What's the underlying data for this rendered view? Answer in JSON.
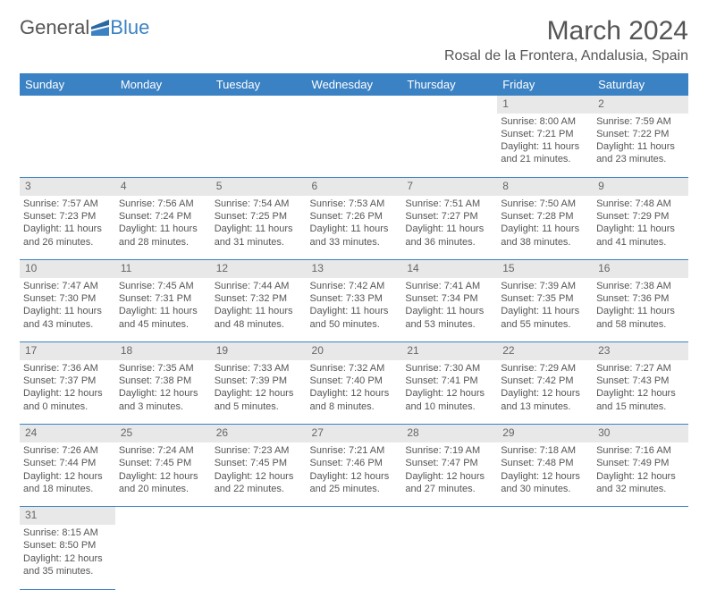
{
  "logo": {
    "textA": "General",
    "textB": "Blue",
    "colorA": "#555555",
    "colorB": "#3b82c4"
  },
  "title": "March 2024",
  "location": "Rosal de la Frontera, Andalusia, Spain",
  "header_color": "#3b82c4",
  "daynum_bg": "#e8e8e8",
  "weekdays": [
    "Sunday",
    "Monday",
    "Tuesday",
    "Wednesday",
    "Thursday",
    "Friday",
    "Saturday"
  ],
  "weeks": [
    {
      "nums": [
        "",
        "",
        "",
        "",
        "",
        "1",
        "2"
      ],
      "info": [
        "",
        "",
        "",
        "",
        "",
        "Sunrise: 8:00 AM\nSunset: 7:21 PM\nDaylight: 11 hours and 21 minutes.",
        "Sunrise: 7:59 AM\nSunset: 7:22 PM\nDaylight: 11 hours and 23 minutes."
      ]
    },
    {
      "nums": [
        "3",
        "4",
        "5",
        "6",
        "7",
        "8",
        "9"
      ],
      "info": [
        "Sunrise: 7:57 AM\nSunset: 7:23 PM\nDaylight: 11 hours and 26 minutes.",
        "Sunrise: 7:56 AM\nSunset: 7:24 PM\nDaylight: 11 hours and 28 minutes.",
        "Sunrise: 7:54 AM\nSunset: 7:25 PM\nDaylight: 11 hours and 31 minutes.",
        "Sunrise: 7:53 AM\nSunset: 7:26 PM\nDaylight: 11 hours and 33 minutes.",
        "Sunrise: 7:51 AM\nSunset: 7:27 PM\nDaylight: 11 hours and 36 minutes.",
        "Sunrise: 7:50 AM\nSunset: 7:28 PM\nDaylight: 11 hours and 38 minutes.",
        "Sunrise: 7:48 AM\nSunset: 7:29 PM\nDaylight: 11 hours and 41 minutes."
      ]
    },
    {
      "nums": [
        "10",
        "11",
        "12",
        "13",
        "14",
        "15",
        "16"
      ],
      "info": [
        "Sunrise: 7:47 AM\nSunset: 7:30 PM\nDaylight: 11 hours and 43 minutes.",
        "Sunrise: 7:45 AM\nSunset: 7:31 PM\nDaylight: 11 hours and 45 minutes.",
        "Sunrise: 7:44 AM\nSunset: 7:32 PM\nDaylight: 11 hours and 48 minutes.",
        "Sunrise: 7:42 AM\nSunset: 7:33 PM\nDaylight: 11 hours and 50 minutes.",
        "Sunrise: 7:41 AM\nSunset: 7:34 PM\nDaylight: 11 hours and 53 minutes.",
        "Sunrise: 7:39 AM\nSunset: 7:35 PM\nDaylight: 11 hours and 55 minutes.",
        "Sunrise: 7:38 AM\nSunset: 7:36 PM\nDaylight: 11 hours and 58 minutes."
      ]
    },
    {
      "nums": [
        "17",
        "18",
        "19",
        "20",
        "21",
        "22",
        "23"
      ],
      "info": [
        "Sunrise: 7:36 AM\nSunset: 7:37 PM\nDaylight: 12 hours and 0 minutes.",
        "Sunrise: 7:35 AM\nSunset: 7:38 PM\nDaylight: 12 hours and 3 minutes.",
        "Sunrise: 7:33 AM\nSunset: 7:39 PM\nDaylight: 12 hours and 5 minutes.",
        "Sunrise: 7:32 AM\nSunset: 7:40 PM\nDaylight: 12 hours and 8 minutes.",
        "Sunrise: 7:30 AM\nSunset: 7:41 PM\nDaylight: 12 hours and 10 minutes.",
        "Sunrise: 7:29 AM\nSunset: 7:42 PM\nDaylight: 12 hours and 13 minutes.",
        "Sunrise: 7:27 AM\nSunset: 7:43 PM\nDaylight: 12 hours and 15 minutes."
      ]
    },
    {
      "nums": [
        "24",
        "25",
        "26",
        "27",
        "28",
        "29",
        "30"
      ],
      "info": [
        "Sunrise: 7:26 AM\nSunset: 7:44 PM\nDaylight: 12 hours and 18 minutes.",
        "Sunrise: 7:24 AM\nSunset: 7:45 PM\nDaylight: 12 hours and 20 minutes.",
        "Sunrise: 7:23 AM\nSunset: 7:45 PM\nDaylight: 12 hours and 22 minutes.",
        "Sunrise: 7:21 AM\nSunset: 7:46 PM\nDaylight: 12 hours and 25 minutes.",
        "Sunrise: 7:19 AM\nSunset: 7:47 PM\nDaylight: 12 hours and 27 minutes.",
        "Sunrise: 7:18 AM\nSunset: 7:48 PM\nDaylight: 12 hours and 30 minutes.",
        "Sunrise: 7:16 AM\nSunset: 7:49 PM\nDaylight: 12 hours and 32 minutes."
      ]
    },
    {
      "nums": [
        "31",
        "",
        "",
        "",
        "",
        "",
        ""
      ],
      "info": [
        "Sunrise: 8:15 AM\nSunset: 8:50 PM\nDaylight: 12 hours and 35 minutes.",
        "",
        "",
        "",
        "",
        "",
        ""
      ]
    }
  ]
}
